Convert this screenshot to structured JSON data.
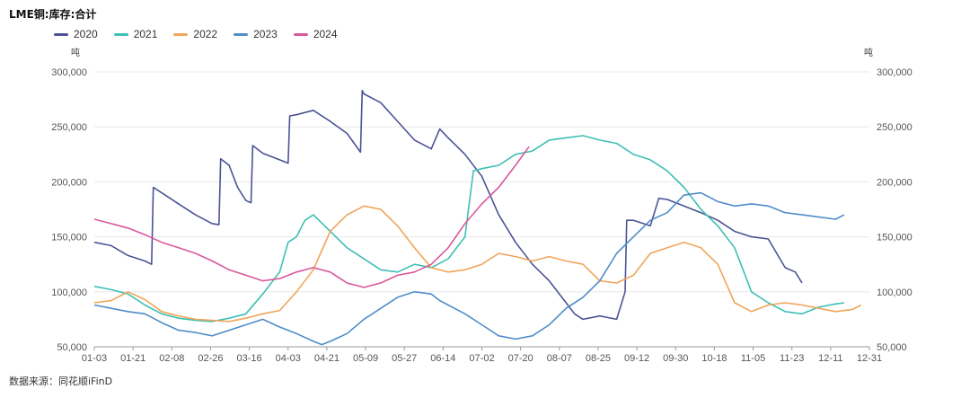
{
  "title": "LME铜:库存:合计",
  "source": "数据来源：同花顺iFinD",
  "chart_data": {
    "type": "line",
    "title": "LME铜:库存:合计",
    "unit_left": "吨",
    "unit_right": "吨",
    "ylim": [
      50000,
      300000
    ],
    "y_ticks": [
      50000,
      100000,
      150000,
      200000,
      250000,
      300000
    ],
    "x_ticks": [
      "01-03",
      "01-21",
      "02-08",
      "02-26",
      "03-16",
      "04-03",
      "04-21",
      "05-09",
      "05-27",
      "06-14",
      "07-02",
      "07-20",
      "08-07",
      "08-25",
      "09-12",
      "09-30",
      "10-18",
      "11-05",
      "11-23",
      "12-11",
      "12-31"
    ],
    "grid": "horizontal",
    "legend": "top-left",
    "series": [
      {
        "name": "2020",
        "color": "#4B5394",
        "points": [
          [
            0,
            145000
          ],
          [
            1,
            142000
          ],
          [
            2,
            133000
          ],
          [
            3,
            128000
          ],
          [
            3.4,
            125000
          ],
          [
            3.5,
            195000
          ],
          [
            4,
            190000
          ],
          [
            5,
            180000
          ],
          [
            6,
            170000
          ],
          [
            7,
            162000
          ],
          [
            7.4,
            161000
          ],
          [
            7.5,
            221000
          ],
          [
            8,
            215000
          ],
          [
            8.5,
            195000
          ],
          [
            9,
            183000
          ],
          [
            9.3,
            181000
          ],
          [
            9.4,
            233000
          ],
          [
            10,
            226000
          ],
          [
            11,
            220000
          ],
          [
            11.5,
            217000
          ],
          [
            11.6,
            260000
          ],
          [
            12,
            261000
          ],
          [
            13,
            265000
          ],
          [
            14,
            255000
          ],
          [
            15,
            244000
          ],
          [
            15.8,
            227000
          ],
          [
            15.9,
            283000
          ],
          [
            16,
            280000
          ],
          [
            17,
            272000
          ],
          [
            18,
            255000
          ],
          [
            19,
            238000
          ],
          [
            20,
            230000
          ],
          [
            20.5,
            248000
          ],
          [
            21,
            240000
          ],
          [
            22,
            225000
          ],
          [
            23,
            205000
          ],
          [
            24,
            170000
          ],
          [
            25,
            145000
          ],
          [
            26,
            125000
          ],
          [
            27,
            110000
          ],
          [
            28,
            90000
          ],
          [
            28.5,
            80000
          ],
          [
            29,
            75000
          ],
          [
            30,
            78000
          ],
          [
            31,
            75000
          ],
          [
            31.5,
            100000
          ],
          [
            31.6,
            165000
          ],
          [
            32,
            165000
          ],
          [
            33,
            160000
          ],
          [
            33.5,
            185000
          ],
          [
            34,
            184000
          ],
          [
            35,
            178000
          ],
          [
            36,
            172000
          ],
          [
            37,
            165000
          ],
          [
            38,
            155000
          ],
          [
            39,
            150000
          ],
          [
            40,
            148000
          ],
          [
            40.5,
            135000
          ],
          [
            41,
            122000
          ],
          [
            41.6,
            118000
          ],
          [
            42,
            108000
          ]
        ]
      },
      {
        "name": "2021",
        "color": "#3FBFB4",
        "points": [
          [
            0,
            105000
          ],
          [
            1,
            102000
          ],
          [
            2,
            98000
          ],
          [
            3,
            88000
          ],
          [
            4,
            80000
          ],
          [
            5,
            76000
          ],
          [
            6,
            74000
          ],
          [
            7,
            73000
          ],
          [
            8,
            76000
          ],
          [
            9,
            80000
          ],
          [
            10,
            98000
          ],
          [
            11,
            118000
          ],
          [
            11.5,
            145000
          ],
          [
            12,
            150000
          ],
          [
            12.5,
            165000
          ],
          [
            13,
            170000
          ],
          [
            14,
            155000
          ],
          [
            15,
            140000
          ],
          [
            16,
            130000
          ],
          [
            17,
            120000
          ],
          [
            18,
            118000
          ],
          [
            19,
            125000
          ],
          [
            20,
            122000
          ],
          [
            21,
            130000
          ],
          [
            22,
            150000
          ],
          [
            22.5,
            210000
          ],
          [
            23,
            212000
          ],
          [
            24,
            215000
          ],
          [
            25,
            225000
          ],
          [
            26,
            228000
          ],
          [
            27,
            238000
          ],
          [
            28,
            240000
          ],
          [
            29,
            242000
          ],
          [
            30,
            238000
          ],
          [
            31,
            235000
          ],
          [
            32,
            225000
          ],
          [
            33,
            220000
          ],
          [
            34,
            210000
          ],
          [
            35,
            195000
          ],
          [
            36,
            175000
          ],
          [
            37,
            160000
          ],
          [
            38,
            140000
          ],
          [
            38.5,
            120000
          ],
          [
            39,
            100000
          ],
          [
            40,
            90000
          ],
          [
            41,
            82000
          ],
          [
            42,
            80000
          ],
          [
            43,
            86000
          ],
          [
            44,
            89000
          ],
          [
            44.5,
            90000
          ]
        ]
      },
      {
        "name": "2022",
        "color": "#F0A55A",
        "points": [
          [
            0,
            90000
          ],
          [
            1,
            92000
          ],
          [
            2,
            100000
          ],
          [
            3,
            93000
          ],
          [
            4,
            82000
          ],
          [
            5,
            78000
          ],
          [
            6,
            75000
          ],
          [
            7,
            74000
          ],
          [
            8,
            73000
          ],
          [
            9,
            76000
          ],
          [
            10,
            80000
          ],
          [
            11,
            83000
          ],
          [
            12,
            100000
          ],
          [
            13,
            120000
          ],
          [
            14,
            155000
          ],
          [
            15,
            170000
          ],
          [
            16,
            178000
          ],
          [
            17,
            175000
          ],
          [
            18,
            160000
          ],
          [
            19,
            140000
          ],
          [
            20,
            122000
          ],
          [
            21,
            118000
          ],
          [
            22,
            120000
          ],
          [
            23,
            125000
          ],
          [
            24,
            135000
          ],
          [
            25,
            132000
          ],
          [
            26,
            128000
          ],
          [
            27,
            132000
          ],
          [
            28,
            128000
          ],
          [
            29,
            125000
          ],
          [
            30,
            110000
          ],
          [
            31,
            108000
          ],
          [
            32,
            115000
          ],
          [
            33,
            135000
          ],
          [
            34,
            140000
          ],
          [
            35,
            145000
          ],
          [
            36,
            140000
          ],
          [
            37,
            125000
          ],
          [
            38,
            90000
          ],
          [
            39,
            82000
          ],
          [
            40,
            88000
          ],
          [
            41,
            90000
          ],
          [
            42,
            88000
          ],
          [
            43,
            85000
          ],
          [
            44,
            82000
          ],
          [
            45,
            84000
          ],
          [
            45.5,
            88000
          ]
        ]
      },
      {
        "name": "2023",
        "color": "#4F8DC8",
        "points": [
          [
            0,
            88000
          ],
          [
            1,
            85000
          ],
          [
            2,
            82000
          ],
          [
            3,
            80000
          ],
          [
            4,
            72000
          ],
          [
            5,
            65000
          ],
          [
            6,
            63000
          ],
          [
            7,
            60000
          ],
          [
            8,
            65000
          ],
          [
            9,
            70000
          ],
          [
            10,
            75000
          ],
          [
            11,
            68000
          ],
          [
            12,
            62000
          ],
          [
            13,
            55000
          ],
          [
            13.5,
            52000
          ],
          [
            14,
            55000
          ],
          [
            15,
            62000
          ],
          [
            16,
            75000
          ],
          [
            17,
            85000
          ],
          [
            18,
            95000
          ],
          [
            19,
            100000
          ],
          [
            20,
            98000
          ],
          [
            20.5,
            92000
          ],
          [
            21,
            88000
          ],
          [
            22,
            80000
          ],
          [
            23,
            70000
          ],
          [
            24,
            60000
          ],
          [
            25,
            57000
          ],
          [
            26,
            60000
          ],
          [
            27,
            70000
          ],
          [
            28,
            85000
          ],
          [
            29,
            95000
          ],
          [
            30,
            110000
          ],
          [
            31,
            135000
          ],
          [
            32,
            150000
          ],
          [
            33,
            165000
          ],
          [
            34,
            172000
          ],
          [
            35,
            188000
          ],
          [
            36,
            190000
          ],
          [
            37,
            182000
          ],
          [
            38,
            178000
          ],
          [
            39,
            180000
          ],
          [
            40,
            178000
          ],
          [
            41,
            172000
          ],
          [
            42,
            170000
          ],
          [
            43,
            168000
          ],
          [
            44,
            166000
          ],
          [
            44.5,
            170000
          ]
        ]
      },
      {
        "name": "2024",
        "color": "#D9589B",
        "points": [
          [
            0,
            166000
          ],
          [
            1,
            162000
          ],
          [
            2,
            158000
          ],
          [
            3,
            152000
          ],
          [
            4,
            145000
          ],
          [
            5,
            140000
          ],
          [
            6,
            135000
          ],
          [
            7,
            128000
          ],
          [
            8,
            120000
          ],
          [
            9,
            115000
          ],
          [
            10,
            110000
          ],
          [
            11,
            112000
          ],
          [
            12,
            118000
          ],
          [
            13,
            122000
          ],
          [
            14,
            118000
          ],
          [
            15,
            108000
          ],
          [
            16,
            104000
          ],
          [
            17,
            108000
          ],
          [
            18,
            115000
          ],
          [
            19,
            118000
          ],
          [
            20,
            125000
          ],
          [
            21,
            140000
          ],
          [
            22,
            162000
          ],
          [
            23,
            180000
          ],
          [
            24,
            195000
          ],
          [
            25,
            215000
          ],
          [
            25.8,
            232000
          ]
        ]
      }
    ]
  }
}
